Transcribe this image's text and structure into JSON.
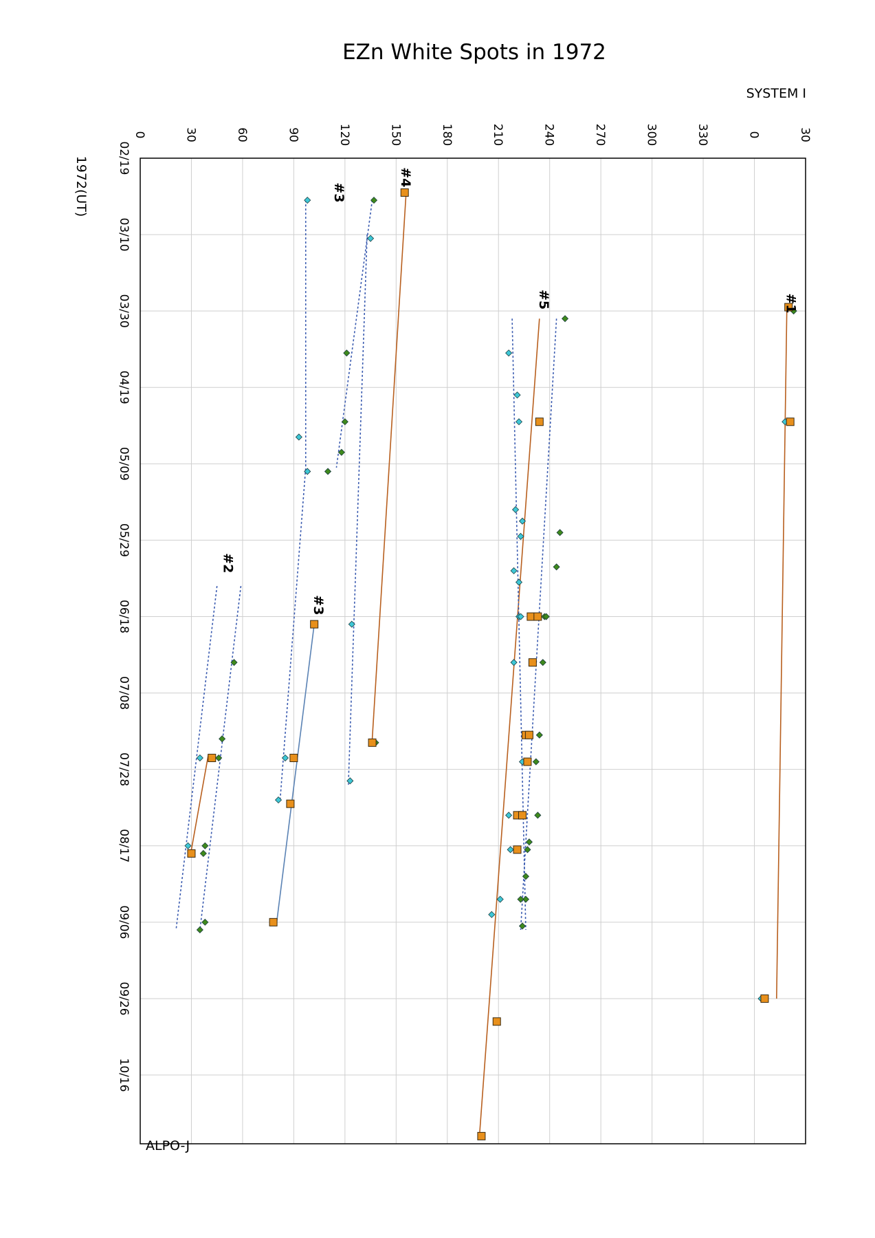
{
  "chart_data": {
    "type": "scatter",
    "title": "EZn White Spots in 1972",
    "longitude_axis_label": "SYSTEM I",
    "date_axis_label": "1972(UT)",
    "credit": "ALPO-J",
    "longitude_ticks": [
      "0",
      "30",
      "60",
      "90",
      "120",
      "150",
      "180",
      "210",
      "240",
      "270",
      "300",
      "330",
      "0",
      "30"
    ],
    "longitude_range": [
      0,
      390
    ],
    "date_ticks": [
      "02/19",
      "03/10",
      "03/30",
      "04/19",
      "05/09",
      "05/29",
      "06/18",
      "07/08",
      "07/28",
      "08/17",
      "09/06",
      "09/26",
      "10/16"
    ],
    "date_range": [
      "1972-02-19",
      "1972-11-03"
    ],
    "grid": true,
    "series_colors": {
      "drift": "#b85f1e",
      "preceding_end": "#3a5bb0",
      "following_end": "#3a5bb0",
      "spot": "#e8901c",
      "cyan": "#3ec7d6",
      "green": "#3f8a1c",
      "solid3": "#5a82b4"
    },
    "spot_labels": [
      {
        "text": "#1",
        "x": 379,
        "date": "1972-03-28"
      },
      {
        "text": "#2",
        "x": 49,
        "date": "1972-06-04"
      },
      {
        "text": "#3",
        "x": 114,
        "date": "1972-02-28"
      },
      {
        "text": "#3",
        "x": 102,
        "date": "1972-06-15"
      },
      {
        "text": "#4",
        "x": 153,
        "date": "1972-02-24"
      },
      {
        "text": "#5",
        "x": 234,
        "date": "1972-03-27"
      }
    ],
    "drift_lines": [
      {
        "style": "drift",
        "points": [
          [
            379,
            "1972-03-30"
          ],
          [
            373,
            "1972-09-26"
          ]
        ]
      },
      {
        "style": "drift",
        "points": [
          [
            156,
            "1972-02-27"
          ],
          [
            136,
            "1972-07-20"
          ]
        ]
      },
      {
        "style": "drift",
        "points": [
          [
            234,
            "1972-04-01"
          ],
          [
            199,
            "1972-10-31"
          ]
        ]
      },
      {
        "style": "drift",
        "points": [
          [
            40,
            "1972-07-24"
          ],
          [
            30,
            "1972-08-18"
          ]
        ]
      },
      {
        "style": "solid3",
        "points": [
          [
            102,
            "1972-06-20"
          ],
          [
            80,
            "1972-09-06"
          ]
        ]
      },
      {
        "style": "dotted",
        "points": [
          [
            97,
            "1972-03-01"
          ],
          [
            97,
            "1972-05-10"
          ],
          [
            82,
            "1972-08-05"
          ]
        ]
      },
      {
        "style": "dotted",
        "points": [
          [
            136,
            "1972-03-01"
          ],
          [
            115,
            "1972-05-10"
          ]
        ]
      },
      {
        "style": "dotted",
        "points": [
          [
            133,
            "1972-03-10"
          ],
          [
            122,
            "1972-08-01"
          ]
        ]
      },
      {
        "style": "dotted",
        "points": [
          [
            244,
            "1972-04-01"
          ],
          [
            223,
            "1972-09-08"
          ]
        ]
      },
      {
        "style": "dotted",
        "points": [
          [
            218,
            "1972-04-01"
          ],
          [
            226,
            "1972-09-08"
          ]
        ]
      },
      {
        "style": "dotted",
        "points": [
          [
            45,
            "1972-06-10"
          ],
          [
            21,
            "1972-09-08"
          ]
        ]
      },
      {
        "style": "dotted",
        "points": [
          [
            59,
            "1972-06-10"
          ],
          [
            35,
            "1972-09-08"
          ]
        ]
      }
    ],
    "orange_points": [
      [
        380,
        "1972-03-29"
      ],
      [
        381,
        "1972-04-28"
      ],
      [
        366,
        "1972-09-26"
      ],
      [
        155,
        "1972-02-28"
      ],
      [
        136,
        "1972-07-21"
      ],
      [
        234,
        "1972-04-28"
      ],
      [
        229,
        "1972-06-18"
      ],
      [
        233,
        "1972-06-18"
      ],
      [
        230,
        "1972-06-30"
      ],
      [
        226,
        "1972-07-19"
      ],
      [
        228,
        "1972-07-19"
      ],
      [
        227,
        "1972-07-26"
      ],
      [
        221,
        "1972-08-09"
      ],
      [
        224,
        "1972-08-09"
      ],
      [
        221,
        "1972-08-18"
      ],
      [
        209,
        "1972-10-02"
      ],
      [
        200,
        "1972-11-01"
      ],
      [
        42,
        "1972-07-25"
      ],
      [
        30,
        "1972-08-19"
      ],
      [
        102,
        "1972-06-20"
      ],
      [
        90,
        "1972-07-25"
      ],
      [
        88,
        "1972-08-06"
      ],
      [
        78,
        "1972-09-06"
      ]
    ],
    "cyan_points": [
      [
        98,
        "1972-03-01"
      ],
      [
        135,
        "1972-03-11"
      ],
      [
        93,
        "1972-05-02"
      ],
      [
        98,
        "1972-05-11"
      ],
      [
        124,
        "1972-06-20"
      ],
      [
        123,
        "1972-07-31"
      ],
      [
        85,
        "1972-07-25"
      ],
      [
        81,
        "1972-08-05"
      ],
      [
        216,
        "1972-04-10"
      ],
      [
        221,
        "1972-04-21"
      ],
      [
        222,
        "1972-04-28"
      ],
      [
        220,
        "1972-05-21"
      ],
      [
        224,
        "1972-05-24"
      ],
      [
        223,
        "1972-05-28"
      ],
      [
        219,
        "1972-06-06"
      ],
      [
        222,
        "1972-06-09"
      ],
      [
        222,
        "1972-06-18"
      ],
      [
        223,
        "1972-06-18"
      ],
      [
        219,
        "1972-06-30"
      ],
      [
        224,
        "1972-07-26"
      ],
      [
        216,
        "1972-08-09"
      ],
      [
        217,
        "1972-08-18"
      ],
      [
        211,
        "1972-08-31"
      ],
      [
        206,
        "1972-09-04"
      ],
      [
        378,
        "1972-04-28"
      ],
      [
        364,
        "1972-09-26"
      ],
      [
        35,
        "1972-07-25"
      ],
      [
        28,
        "1972-08-17"
      ]
    ],
    "green_points": [
      [
        137,
        "1972-03-01"
      ],
      [
        121,
        "1972-04-10"
      ],
      [
        120,
        "1972-04-28"
      ],
      [
        118,
        "1972-05-06"
      ],
      [
        110,
        "1972-05-11"
      ],
      [
        138,
        "1972-07-21"
      ],
      [
        383,
        "1972-03-30"
      ],
      [
        249,
        "1972-04-01"
      ],
      [
        246,
        "1972-05-27"
      ],
      [
        244,
        "1972-06-05"
      ],
      [
        237,
        "1972-06-18"
      ],
      [
        238,
        "1972-06-18"
      ],
      [
        236,
        "1972-06-30"
      ],
      [
        234,
        "1972-07-19"
      ],
      [
        232,
        "1972-07-26"
      ],
      [
        233,
        "1972-08-09"
      ],
      [
        228,
        "1972-08-16"
      ],
      [
        227,
        "1972-08-18"
      ],
      [
        226,
        "1972-08-25"
      ],
      [
        226,
        "1972-08-31"
      ],
      [
        223,
        "1972-08-31"
      ],
      [
        224,
        "1972-09-07"
      ],
      [
        55,
        "1972-06-30"
      ],
      [
        48,
        "1972-07-20"
      ],
      [
        46,
        "1972-07-25"
      ],
      [
        38,
        "1972-08-17"
      ],
      [
        37,
        "1972-08-19"
      ],
      [
        38,
        "1972-09-06"
      ],
      [
        35,
        "1972-09-08"
      ]
    ]
  }
}
